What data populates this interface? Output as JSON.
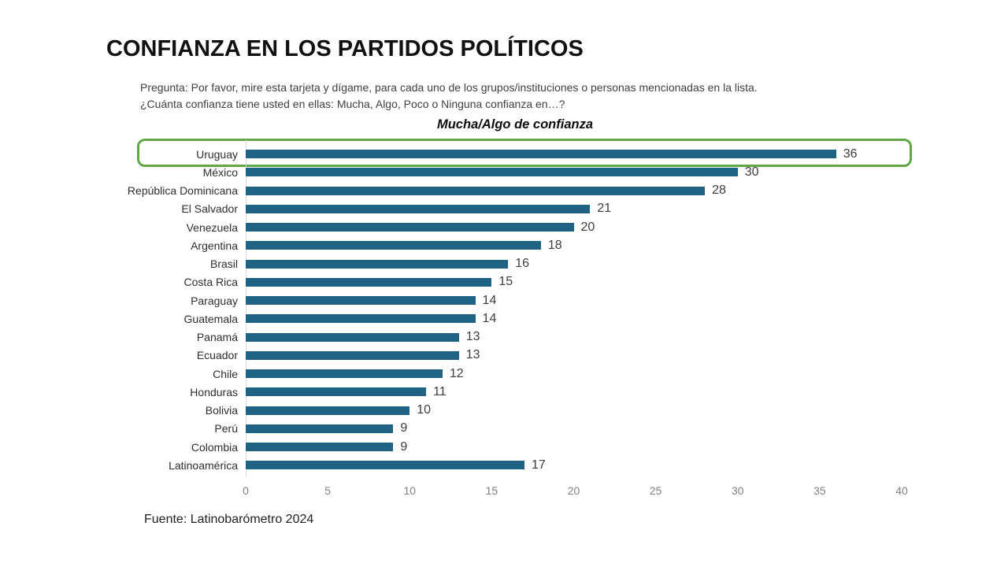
{
  "header": {
    "title": "CONFIANZA EN LOS PARTIDOS POLÍTICOS",
    "question_line1": "Pregunta: Por favor, mire esta tarjeta y dígame, para cada uno de los grupos/instituciones o personas mencionadas en la lista.",
    "question_line2": "¿Cuánta confianza tiene usted en ellas: Mucha, Algo, Poco o Ninguna confianza en…?"
  },
  "chart_data": {
    "type": "bar",
    "orientation": "horizontal",
    "title": "Mucha/Algo de confianza",
    "categories": [
      "Uruguay",
      "México",
      "República Dominicana",
      "El Salvador",
      "Venezuela",
      "Argentina",
      "Brasil",
      "Costa Rica",
      "Paraguay",
      "Guatemala",
      "Panamá",
      "Ecuador",
      "Chile",
      "Honduras",
      "Bolivia",
      "Perú",
      "Colombia",
      "Latinoamérica"
    ],
    "values": [
      36,
      30,
      28,
      21,
      20,
      18,
      16,
      15,
      14,
      14,
      13,
      13,
      12,
      11,
      10,
      9,
      9,
      17
    ],
    "xlim": [
      0,
      40
    ],
    "x_ticks": [
      0,
      5,
      10,
      15,
      20,
      25,
      30,
      35,
      40
    ],
    "bar_color": "#1f6384",
    "value_label_color": "#3d3d3d",
    "grid": false,
    "value_labels": true,
    "highlight": {
      "category": "Uruguay",
      "box_color": "#61a744"
    }
  },
  "footer": {
    "source": "Fuente: Latinobarómetro 2024"
  }
}
